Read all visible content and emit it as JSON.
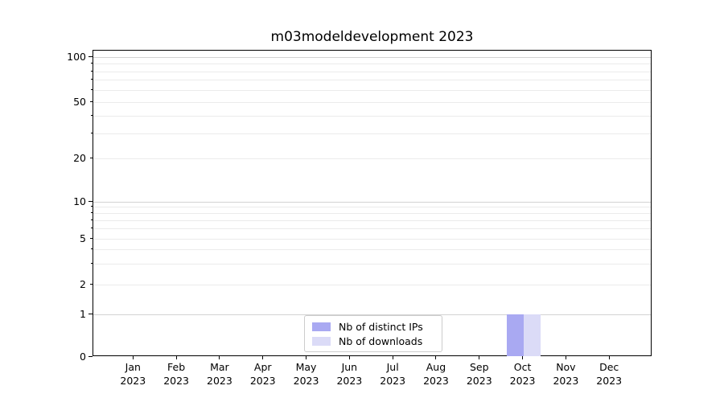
{
  "chart_data": {
    "type": "bar",
    "title": "m03modeldevelopment 2023",
    "categories": [
      "Jan 2023",
      "Feb 2023",
      "Mar 2023",
      "Apr 2023",
      "May 2023",
      "Jun 2023",
      "Jul 2023",
      "Aug 2023",
      "Sep 2023",
      "Oct 2023",
      "Nov 2023",
      "Dec 2023"
    ],
    "series": [
      {
        "name": "Nb of distinct IPs",
        "color": "#a9a9f2",
        "values": [
          0,
          0,
          0,
          0,
          0,
          0,
          0,
          0,
          0,
          1,
          0,
          0
        ]
      },
      {
        "name": "Nb of downloads",
        "color": "#dbdbf7",
        "values": [
          0,
          0,
          0,
          0,
          0,
          0,
          0,
          0,
          0,
          1,
          0,
          0
        ]
      }
    ],
    "yscale": "symlog",
    "ylim": [
      0,
      110
    ],
    "yticks": [
      0,
      1,
      2,
      5,
      10,
      20,
      50,
      100
    ],
    "ytick_labels": [
      "0",
      "1",
      "2",
      "5",
      "10",
      "20",
      "50",
      "100"
    ],
    "yticks_major": [
      1,
      10,
      100
    ],
    "yticks_minor": [
      3,
      4,
      6,
      7,
      8,
      9,
      30,
      40,
      60,
      70,
      80,
      90
    ],
    "xlabel": "",
    "ylabel": "",
    "grid": "both",
    "legend_position": "lower center"
  },
  "colors": {
    "background": "#ffffff",
    "axis": "#000000",
    "text": "#000000",
    "grid_major": "#d3d3d3",
    "grid_minor": "#ebebeb",
    "legend_border": "#cccccc",
    "bar_distinct_ips": "#a9a9f2",
    "bar_downloads": "#dbdbf7"
  }
}
